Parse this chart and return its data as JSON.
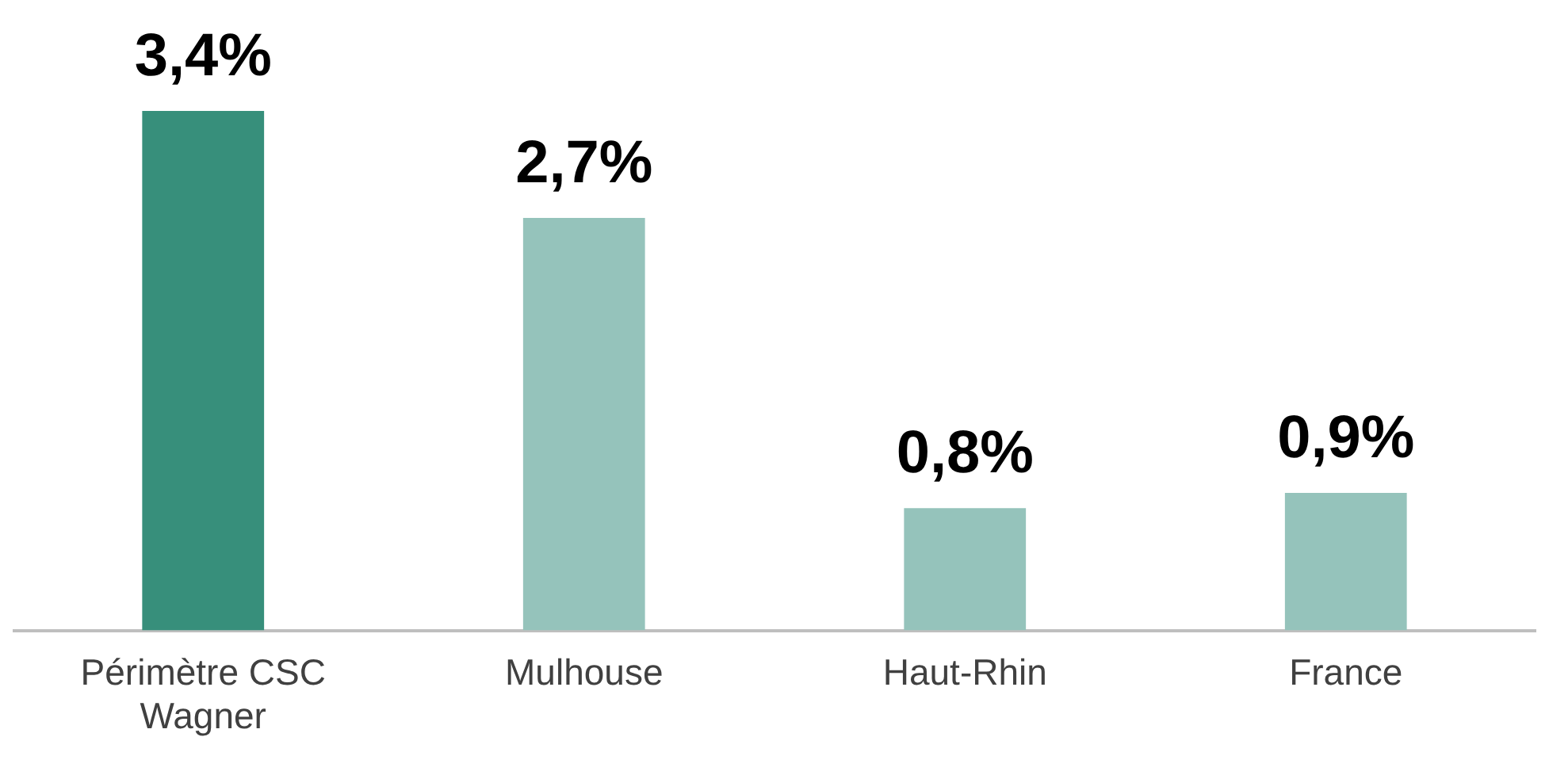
{
  "chart_data": {
    "type": "bar",
    "categories": [
      "Périmètre CSC Wagner",
      "Mulhouse",
      "Haut-Rhin",
      "France"
    ],
    "values": [
      3.4,
      2.7,
      0.8,
      0.9
    ],
    "colors": [
      "#378f7b",
      "#95c3bb",
      "#95c3bb",
      "#95c3bb"
    ],
    "value_labels": [
      "3,4%",
      "2,7%",
      "0,8%",
      "0,9%"
    ],
    "legend": false
  }
}
